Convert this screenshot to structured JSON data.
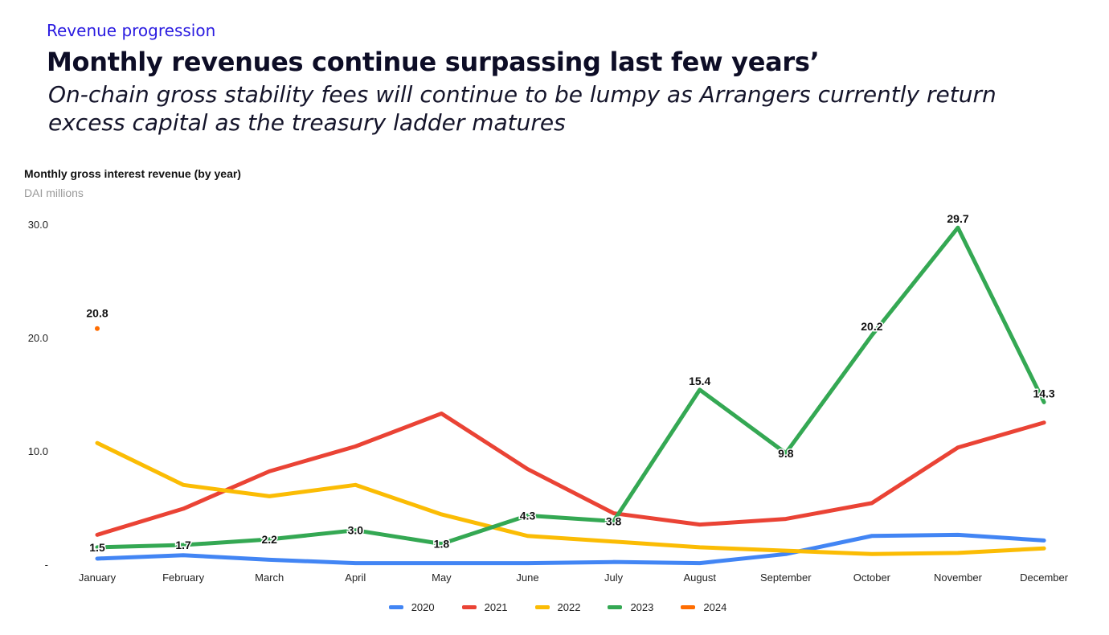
{
  "header": {
    "eyebrow": "Revenue progression",
    "title": "Monthly revenues continue surpassing last few years’",
    "subtitle": "On-chain gross stability fees will continue to be lumpy as Arrangers currently return excess capital as the treasury ladder matures"
  },
  "chart_data": {
    "type": "line",
    "title": "Monthly gross interest revenue (by year)",
    "subtitle": "DAI millions",
    "xlabel": "",
    "ylabel": "",
    "ylim": [
      0,
      30
    ],
    "y_ticks": [
      "-",
      "10.0",
      "20.0",
      "30.0"
    ],
    "y_tick_values": [
      0,
      10,
      20,
      30
    ],
    "grid": false,
    "legend_position": "bottom",
    "categories": [
      "January",
      "February",
      "March",
      "April",
      "May",
      "June",
      "July",
      "August",
      "September",
      "October",
      "November",
      "December"
    ],
    "series": [
      {
        "name": "2020",
        "color": "#4285f4",
        "values": [
          0.5,
          0.8,
          0.4,
          0.1,
          0.1,
          0.1,
          0.2,
          0.1,
          0.9,
          2.5,
          2.6,
          2.1
        ]
      },
      {
        "name": "2021",
        "color": "#ea4335",
        "values": [
          2.6,
          4.9,
          8.2,
          10.4,
          13.3,
          8.4,
          4.5,
          3.5,
          4.0,
          5.4,
          10.3,
          12.5
        ]
      },
      {
        "name": "2022",
        "color": "#fbbc04",
        "values": [
          10.7,
          7.0,
          6.0,
          7.0,
          4.4,
          2.5,
          2.0,
          1.5,
          1.2,
          0.9,
          1.0,
          1.4
        ]
      },
      {
        "name": "2023",
        "color": "#34a853",
        "values": [
          1.5,
          1.7,
          2.2,
          3.0,
          1.8,
          4.3,
          3.8,
          15.4,
          9.8,
          20.2,
          29.7,
          14.3
        ],
        "data_labels": [
          "1.5",
          "1.7",
          "2.2",
          "3.0",
          "1.8",
          "4.3",
          "3.8",
          "15.4",
          "9.8",
          "20.2",
          "29.7",
          "14.3"
        ]
      },
      {
        "name": "2024",
        "color": "#ff6d01",
        "values": [
          20.8,
          null,
          null,
          null,
          null,
          null,
          null,
          null,
          null,
          null,
          null,
          null
        ],
        "data_labels": [
          "20.8",
          null,
          null,
          null,
          null,
          null,
          null,
          null,
          null,
          null,
          null,
          null
        ]
      }
    ]
  }
}
